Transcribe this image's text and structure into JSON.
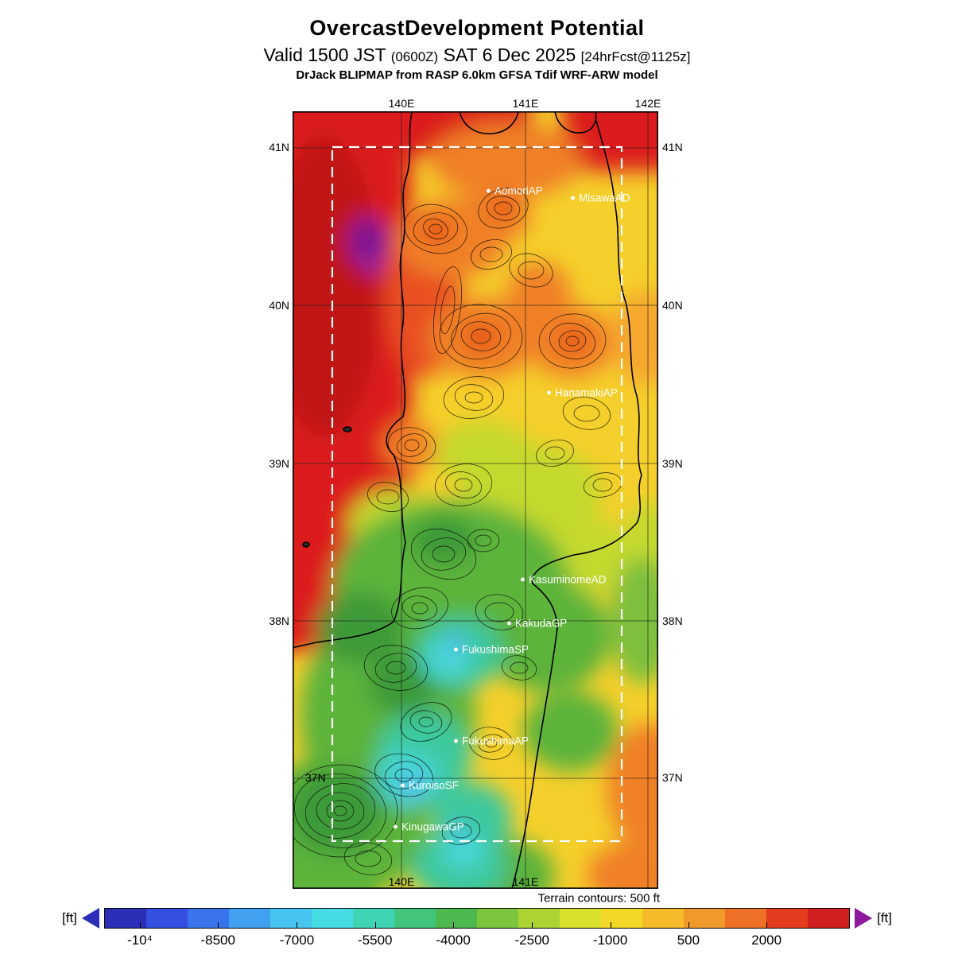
{
  "header": {
    "title": "OvercastDevelopment Potential",
    "valid_prefix": "Valid 1500 JST",
    "valid_zulu": "(0600Z)",
    "valid_date": "SAT 6 Dec 2025",
    "valid_fcst": "[24hrFcst@1125z]",
    "model_line": "DrJack BLIPMAP from RASP 6.0km GFSA Tdif WRF-ARW model"
  },
  "map": {
    "lon_labels_top": [
      "140E",
      "141E",
      "142E"
    ],
    "lon_labels_bottom": [
      "140E",
      "141E"
    ],
    "lat_labels_left": [
      "41N",
      "40N",
      "39N",
      "38N",
      "37N"
    ],
    "lat_labels_right": [
      "41N",
      "40N",
      "39N",
      "38N",
      "37N"
    ],
    "stations": [
      {
        "name": "AomoriAP"
      },
      {
        "name": "MisawaAD"
      },
      {
        "name": "HanamakiAP"
      },
      {
        "name": "KasuminomeAD"
      },
      {
        "name": "KakudaGP"
      },
      {
        "name": "FukushimaSP"
      },
      {
        "name": "FukushimaAP"
      },
      {
        "name": "KuroisoSF"
      },
      {
        "name": "KinugawaGP"
      }
    ],
    "terrain_note": "Terrain contours: 500 ft"
  },
  "colorbar": {
    "unit_left": "[ft]",
    "unit_right": "[ft]",
    "tick_labels": [
      "-10⁴",
      "-8500",
      "-7000",
      "-5500",
      "-4000",
      "-2500",
      "-1000",
      "500",
      "2000"
    ],
    "colors": [
      "#2b2fb8",
      "#3450e0",
      "#3a74ec",
      "#41a0f0",
      "#48c4f0",
      "#46dce4",
      "#3fd4b4",
      "#41c57c",
      "#4db84e",
      "#7cc63e",
      "#abd433",
      "#d8e02c",
      "#f4d828",
      "#f6bb2a",
      "#f2992c",
      "#ee6f26",
      "#e43c1e",
      "#d21f1f"
    ],
    "arrow_right_color": "#8d1a9d"
  },
  "chart_data": {
    "type": "heatmap",
    "title": "OvercastDevelopment Potential",
    "units": "ft",
    "colorbar_tick_values": [
      -10000,
      -8500,
      -7000,
      -5500,
      -4000,
      -2500,
      -1000,
      500,
      2000
    ],
    "terrain_contour_interval_ft": 500,
    "lat_gridlines": [
      41,
      40,
      39,
      38,
      37
    ],
    "lon_gridlines": [
      140,
      141,
      142
    ],
    "legend_position": "bottom"
  }
}
